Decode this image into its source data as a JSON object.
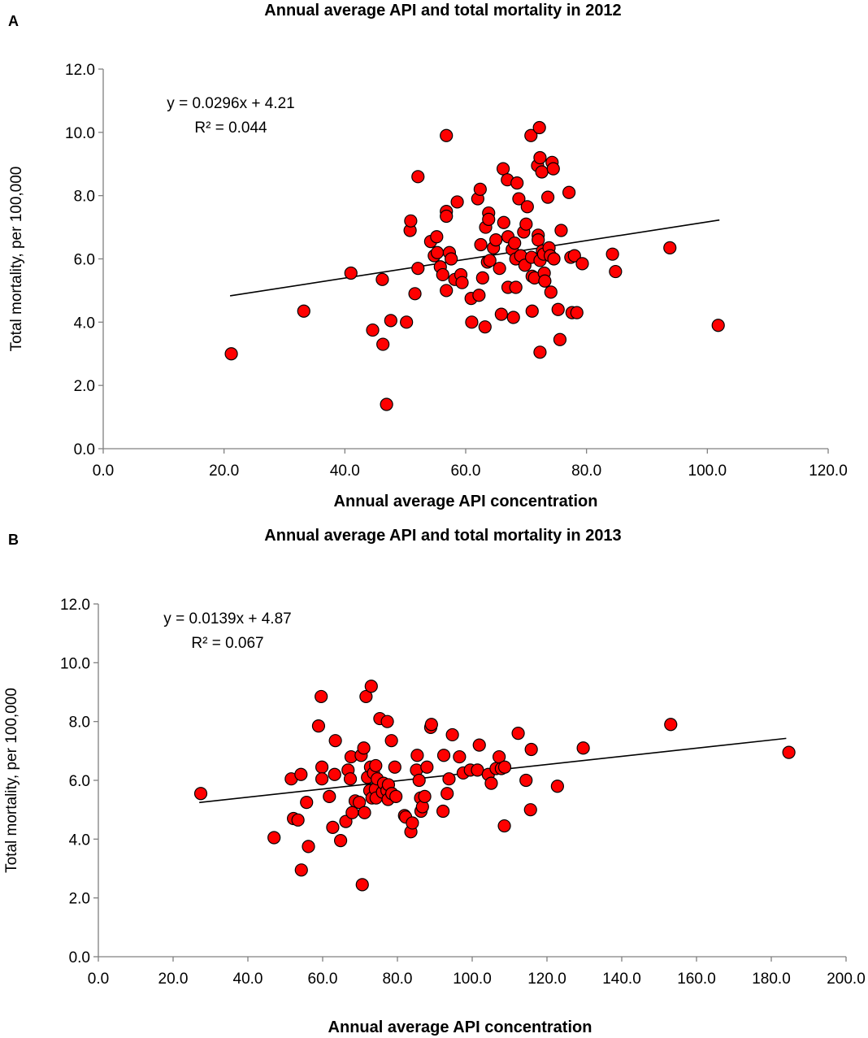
{
  "chart_data": [
    {
      "type": "scatter",
      "panel_label": "A",
      "title": "Annual average API and total mortality in 2012",
      "xlabel": "Annual average API concentration",
      "ylabel": "Total mortality, per 100,000",
      "xlim": [
        0,
        120
      ],
      "ylim": [
        0,
        12
      ],
      "x_ticks": [
        "0.0",
        "20.0",
        "40.0",
        "60.0",
        "80.0",
        "100.0",
        "120.0"
      ],
      "y_ticks": [
        "0.0",
        "2.0",
        "4.0",
        "6.0",
        "8.0",
        "10.0",
        "12.0"
      ],
      "grid": false,
      "marker_color": "#ff0000",
      "trendline": {
        "slope": 0.0296,
        "intercept": 4.21,
        "x_start": 21,
        "x_end": 102
      },
      "equation": "y = 0.0296x + 4.21",
      "r_squared": "R² = 0.044",
      "points": [
        [
          21.2,
          3.0
        ],
        [
          33.2,
          4.35
        ],
        [
          41.0,
          5.55
        ],
        [
          44.6,
          3.75
        ],
        [
          46.2,
          5.35
        ],
        [
          46.3,
          3.3
        ],
        [
          46.9,
          1.4
        ],
        [
          47.6,
          4.05
        ],
        [
          50.2,
          4.0
        ],
        [
          50.8,
          6.9
        ],
        [
          50.9,
          7.2
        ],
        [
          51.6,
          4.9
        ],
        [
          52.1,
          8.6
        ],
        [
          52.1,
          5.7
        ],
        [
          54.2,
          6.55
        ],
        [
          54.8,
          6.1
        ],
        [
          55.2,
          6.7
        ],
        [
          55.3,
          6.2
        ],
        [
          55.8,
          5.75
        ],
        [
          56.2,
          5.5
        ],
        [
          56.8,
          9.9
        ],
        [
          56.8,
          7.5
        ],
        [
          56.8,
          7.35
        ],
        [
          56.8,
          5.0
        ],
        [
          57.3,
          6.2
        ],
        [
          57.6,
          6.0
        ],
        [
          58.2,
          5.35
        ],
        [
          58.6,
          7.8
        ],
        [
          59.2,
          5.5
        ],
        [
          59.4,
          5.25
        ],
        [
          60.9,
          4.75
        ],
        [
          61.0,
          4.0
        ],
        [
          62.0,
          7.9
        ],
        [
          62.2,
          4.85
        ],
        [
          62.4,
          8.2
        ],
        [
          62.5,
          6.45
        ],
        [
          62.8,
          5.4
        ],
        [
          63.2,
          3.85
        ],
        [
          63.3,
          7.0
        ],
        [
          63.6,
          5.9
        ],
        [
          63.8,
          7.45
        ],
        [
          63.8,
          7.25
        ],
        [
          64.0,
          5.95
        ],
        [
          64.6,
          6.35
        ],
        [
          65.0,
          6.6
        ],
        [
          65.6,
          5.7
        ],
        [
          65.9,
          4.25
        ],
        [
          66.2,
          8.85
        ],
        [
          66.3,
          7.15
        ],
        [
          66.9,
          8.5
        ],
        [
          67.0,
          6.7
        ],
        [
          67.0,
          5.1
        ],
        [
          67.7,
          6.3
        ],
        [
          67.9,
          4.15
        ],
        [
          68.1,
          6.5
        ],
        [
          68.3,
          6.0
        ],
        [
          68.3,
          5.1
        ],
        [
          68.5,
          8.4
        ],
        [
          68.8,
          7.9
        ],
        [
          69.1,
          6.1
        ],
        [
          69.6,
          6.85
        ],
        [
          69.8,
          5.8
        ],
        [
          70.0,
          7.1
        ],
        [
          70.2,
          7.65
        ],
        [
          70.8,
          9.9
        ],
        [
          70.9,
          6.05
        ],
        [
          71.0,
          5.45
        ],
        [
          71.0,
          4.35
        ],
        [
          71.4,
          5.4
        ],
        [
          71.9,
          8.95
        ],
        [
          72.0,
          6.75
        ],
        [
          72.0,
          6.6
        ],
        [
          72.2,
          10.15
        ],
        [
          72.3,
          9.2
        ],
        [
          72.3,
          5.95
        ],
        [
          72.3,
          3.05
        ],
        [
          72.6,
          8.75
        ],
        [
          72.7,
          6.25
        ],
        [
          72.9,
          6.15
        ],
        [
          73.0,
          5.55
        ],
        [
          73.1,
          5.3
        ],
        [
          73.6,
          7.95
        ],
        [
          73.8,
          6.35
        ],
        [
          74.0,
          6.1
        ],
        [
          74.1,
          4.95
        ],
        [
          74.3,
          9.05
        ],
        [
          74.5,
          8.85
        ],
        [
          74.6,
          6.0
        ],
        [
          75.3,
          4.4
        ],
        [
          75.6,
          3.45
        ],
        [
          75.8,
          6.9
        ],
        [
          77.1,
          8.1
        ],
        [
          77.4,
          6.05
        ],
        [
          77.6,
          4.3
        ],
        [
          78.0,
          6.1
        ],
        [
          78.4,
          4.3
        ],
        [
          79.3,
          5.85
        ],
        [
          84.3,
          6.15
        ],
        [
          84.8,
          5.6
        ],
        [
          93.8,
          6.35
        ],
        [
          101.8,
          3.9
        ]
      ]
    },
    {
      "type": "scatter",
      "panel_label": "B",
      "title": "Annual average API and total mortality in 2013",
      "xlabel": "Annual average API concentration",
      "ylabel": "Total mortality, per 100,000",
      "xlim": [
        0,
        200
      ],
      "ylim": [
        0,
        12
      ],
      "x_ticks": [
        "0.0",
        "20.0",
        "40.0",
        "60.0",
        "80.0",
        "100.0",
        "120.0",
        "140.0",
        "160.0",
        "180.0",
        "200.0"
      ],
      "y_ticks": [
        "0.0",
        "2.0",
        "4.0",
        "6.0",
        "8.0",
        "10.0",
        "12.0"
      ],
      "grid": false,
      "marker_color": "#ff0000",
      "trendline": {
        "slope": 0.0139,
        "intercept": 4.87,
        "x_start": 27,
        "x_end": 184
      },
      "equation": "y = 0.0139x + 4.87",
      "r_squared": "R² = 0.067",
      "points": [
        [
          27.4,
          5.55
        ],
        [
          47.0,
          4.05
        ],
        [
          51.6,
          6.05
        ],
        [
          52.2,
          4.7
        ],
        [
          53.4,
          4.65
        ],
        [
          54.2,
          6.2
        ],
        [
          54.3,
          2.95
        ],
        [
          55.7,
          5.25
        ],
        [
          56.2,
          3.75
        ],
        [
          58.9,
          7.85
        ],
        [
          59.6,
          8.85
        ],
        [
          59.8,
          6.45
        ],
        [
          59.8,
          6.05
        ],
        [
          61.8,
          5.45
        ],
        [
          62.7,
          4.4
        ],
        [
          63.2,
          6.2
        ],
        [
          63.4,
          7.35
        ],
        [
          64.8,
          3.95
        ],
        [
          66.2,
          4.6
        ],
        [
          66.8,
          6.35
        ],
        [
          67.4,
          6.05
        ],
        [
          67.6,
          6.8
        ],
        [
          67.9,
          4.9
        ],
        [
          68.7,
          5.3
        ],
        [
          69.8,
          5.25
        ],
        [
          70.3,
          6.85
        ],
        [
          70.6,
          2.45
        ],
        [
          71.0,
          7.1
        ],
        [
          71.2,
          4.9
        ],
        [
          71.6,
          8.85
        ],
        [
          72.0,
          6.1
        ],
        [
          72.6,
          5.65
        ],
        [
          72.8,
          6.45
        ],
        [
          73.0,
          9.2
        ],
        [
          73.2,
          5.4
        ],
        [
          73.6,
          6.25
        ],
        [
          74.1,
          5.7
        ],
        [
          74.2,
          6.5
        ],
        [
          74.3,
          5.4
        ],
        [
          74.6,
          6.05
        ],
        [
          75.3,
          8.1
        ],
        [
          76.0,
          5.6
        ],
        [
          76.3,
          5.9
        ],
        [
          77.2,
          5.65
        ],
        [
          77.3,
          8.0
        ],
        [
          77.5,
          5.35
        ],
        [
          77.6,
          5.85
        ],
        [
          78.4,
          7.35
        ],
        [
          78.5,
          5.55
        ],
        [
          79.3,
          6.45
        ],
        [
          79.6,
          5.45
        ],
        [
          81.9,
          4.8
        ],
        [
          82.2,
          4.75
        ],
        [
          83.6,
          4.25
        ],
        [
          84.0,
          4.55
        ],
        [
          85.1,
          6.35
        ],
        [
          85.3,
          6.85
        ],
        [
          85.8,
          6.0
        ],
        [
          86.2,
          5.4
        ],
        [
          86.3,
          4.95
        ],
        [
          86.7,
          5.1
        ],
        [
          87.3,
          5.45
        ],
        [
          87.9,
          6.45
        ],
        [
          88.9,
          7.8
        ],
        [
          89.1,
          7.9
        ],
        [
          92.2,
          4.95
        ],
        [
          92.4,
          6.85
        ],
        [
          93.3,
          5.55
        ],
        [
          93.8,
          6.05
        ],
        [
          94.7,
          7.55
        ],
        [
          96.6,
          6.8
        ],
        [
          97.6,
          6.25
        ],
        [
          99.5,
          6.35
        ],
        [
          101.4,
          6.35
        ],
        [
          101.9,
          7.2
        ],
        [
          104.3,
          6.2
        ],
        [
          105.1,
          5.9
        ],
        [
          106.4,
          6.4
        ],
        [
          107.2,
          6.8
        ],
        [
          107.8,
          6.4
        ],
        [
          108.6,
          4.45
        ],
        [
          108.7,
          6.45
        ],
        [
          112.3,
          7.6
        ],
        [
          114.4,
          6.0
        ],
        [
          115.6,
          5.0
        ],
        [
          115.8,
          7.05
        ],
        [
          122.8,
          5.8
        ],
        [
          129.7,
          7.1
        ],
        [
          153.1,
          7.9
        ],
        [
          184.7,
          6.95
        ]
      ]
    }
  ]
}
